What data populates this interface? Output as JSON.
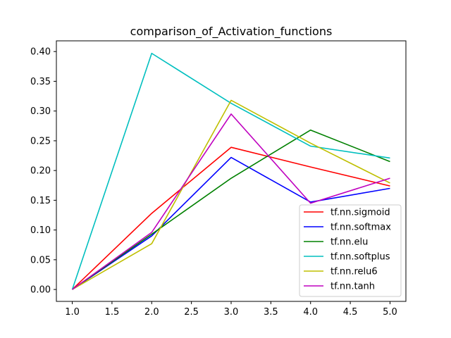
{
  "chart_data": {
    "type": "line",
    "title": "comparison_of_Activation_functions",
    "xlabel": "",
    "ylabel": "",
    "xlim": [
      0.8,
      5.2
    ],
    "ylim": [
      -0.02,
      0.418
    ],
    "xticks": [
      1.0,
      1.5,
      2.0,
      2.5,
      3.0,
      3.5,
      4.0,
      4.5,
      5.0
    ],
    "xtick_labels": [
      "1.0",
      "1.5",
      "2.0",
      "2.5",
      "3.0",
      "3.5",
      "4.0",
      "4.5",
      "5.0"
    ],
    "yticks": [
      0.0,
      0.05,
      0.1,
      0.15,
      0.2,
      0.25,
      0.3,
      0.35,
      0.4
    ],
    "ytick_labels": [
      "0.00",
      "0.05",
      "0.10",
      "0.15",
      "0.20",
      "0.25",
      "0.30",
      "0.35",
      "0.40"
    ],
    "grid": false,
    "legend_position": "lower-right",
    "x": [
      1,
      2,
      3,
      4,
      5
    ],
    "series": [
      {
        "name": "tf.nn.sigmoid",
        "color": "#ff0000",
        "values": [
          0.0,
          0.128,
          0.239,
          0.206,
          0.174
        ]
      },
      {
        "name": "tf.nn.softmax",
        "color": "#0000ff",
        "values": [
          0.0,
          0.09,
          0.222,
          0.147,
          0.17
        ]
      },
      {
        "name": "tf.nn.elu",
        "color": "#008000",
        "values": [
          0.0,
          0.093,
          0.187,
          0.268,
          0.215
        ]
      },
      {
        "name": "tf.nn.softplus",
        "color": "#00bfbf",
        "values": [
          0.0,
          0.397,
          0.313,
          0.241,
          0.221
        ]
      },
      {
        "name": "tf.nn.relu6",
        "color": "#bfbf00",
        "values": [
          0.0,
          0.077,
          0.318,
          0.246,
          0.179
        ]
      },
      {
        "name": "tf.nn.tanh",
        "color": "#bf00bf",
        "values": [
          0.0,
          0.096,
          0.295,
          0.145,
          0.187
        ]
      }
    ]
  }
}
